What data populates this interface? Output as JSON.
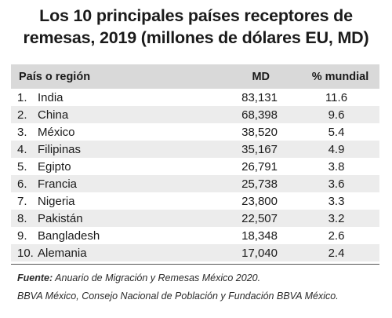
{
  "chart_data": {
    "type": "table",
    "title": "Los 10 principales países receptores de remesas, 2019 (millones de dólares EU, MD)",
    "title_lines": [
      "Los 10 principales países receptores de",
      "remesas, 2019 (millones de dólares EU, MD)"
    ],
    "columns": [
      "País o región",
      "MD",
      "% mundial"
    ],
    "rows": [
      {
        "rank": "1.",
        "name": "India",
        "md": "83,131",
        "pct": "11.6"
      },
      {
        "rank": "2.",
        "name": "China",
        "md": "68,398",
        "pct": "9.6"
      },
      {
        "rank": "3.",
        "name": "México",
        "md": "38,520",
        "pct": "5.4"
      },
      {
        "rank": "4.",
        "name": "Filipinas",
        "md": "35,167",
        "pct": "4.9"
      },
      {
        "rank": "5.",
        "name": "Egipto",
        "md": "26,791",
        "pct": "3.8"
      },
      {
        "rank": "6.",
        "name": "Francia",
        "md": "25,738",
        "pct": "3.6"
      },
      {
        "rank": "7.",
        "name": "Nigeria",
        "md": "23,800",
        "pct": "3.3"
      },
      {
        "rank": "8.",
        "name": "Pakistán",
        "md": "22,507",
        "pct": "3.2"
      },
      {
        "rank": "9.",
        "name": "Bangladesh",
        "md": "18,348",
        "pct": "2.6"
      },
      {
        "rank": "10.",
        "name": "Alemania",
        "md": "17,040",
        "pct": "2.4"
      }
    ],
    "source_label": "Fuente:",
    "source_line1": "Anuario de Migración y Remesas México 2020.",
    "source_line2": "BBVA México, Consejo Nacional de Población y Fundación BBVA México."
  },
  "colors": {
    "header_bg": "#d9d9d9",
    "alt_row_bg": "#ececec",
    "text": "#1a1a1a"
  }
}
